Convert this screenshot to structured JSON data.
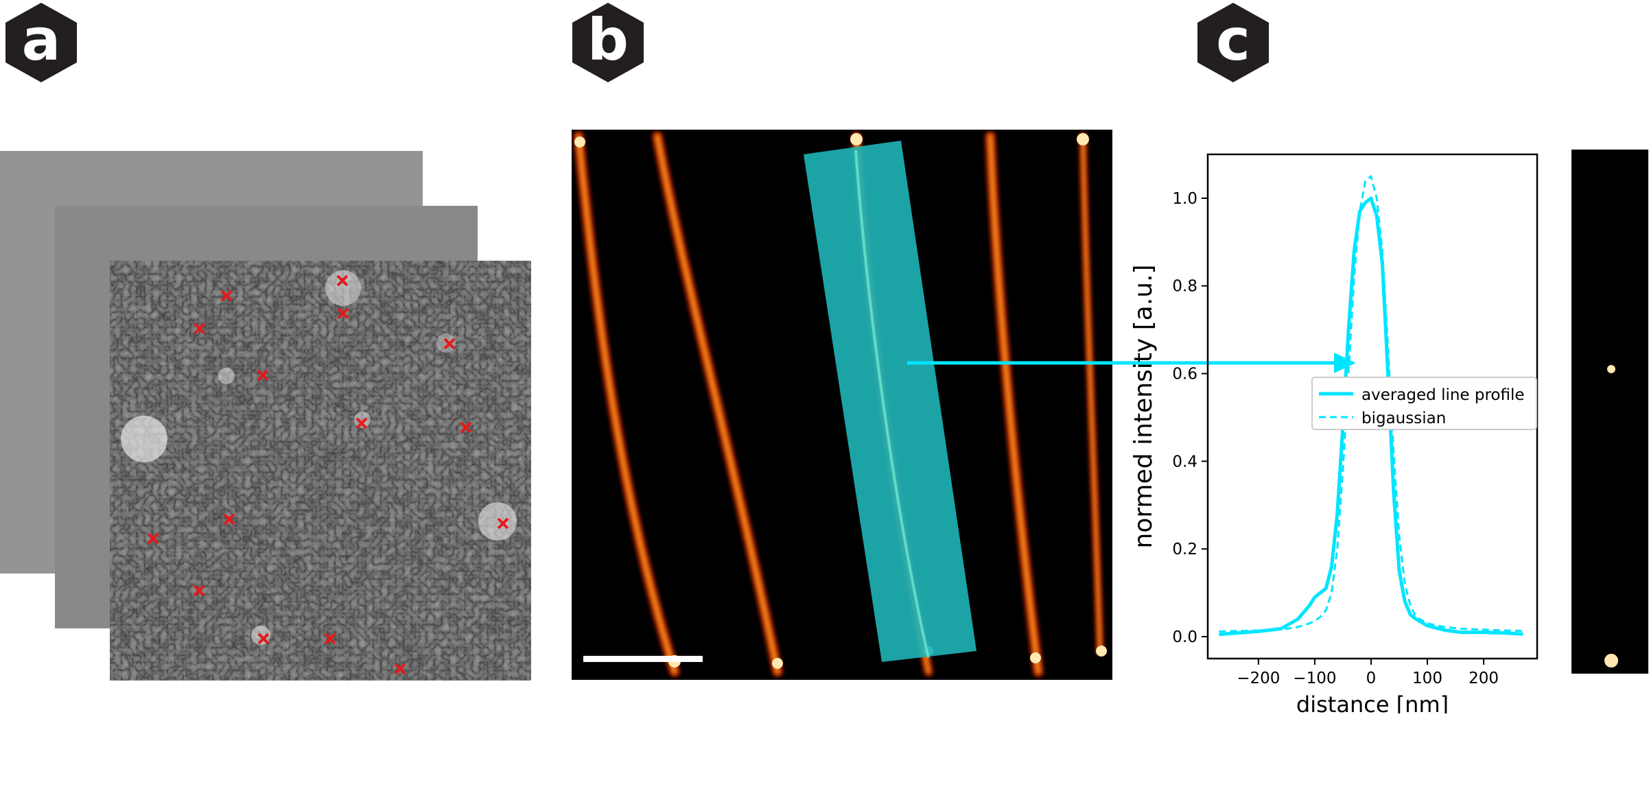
{
  "panels": {
    "a": {
      "label": "a"
    },
    "b": {
      "label": "b"
    },
    "c": {
      "label": "c"
    }
  },
  "colors": {
    "hex_fill": "#231f20",
    "cyan": "#00e5ff",
    "marker_red": "#e41a1c",
    "scalebar": "#ffffff"
  },
  "chart_data": {
    "type": "line",
    "title": "",
    "xlabel": "distance [nm]",
    "ylabel": "normed intensity [a.u.]",
    "xlim": [
      -290,
      295
    ],
    "ylim": [
      -0.05,
      1.1
    ],
    "xticks": [
      -200,
      -100,
      0,
      100,
      200
    ],
    "yticks": [
      0.0,
      0.2,
      0.4,
      0.6,
      0.8,
      1.0
    ],
    "xtick_labels": [
      "−200",
      "−100",
      "0",
      "100",
      "200"
    ],
    "ytick_labels": [
      "0.0",
      "0.2",
      "0.4",
      "0.6",
      "0.8",
      "1.0"
    ],
    "grid": false,
    "legend_position": "center-right",
    "series": [
      {
        "name": "averaged line profile",
        "style": "solid",
        "x": [
          -270,
          -240,
          -200,
          -160,
          -130,
          -110,
          -100,
          -90,
          -80,
          -70,
          -60,
          -50,
          -40,
          -30,
          -20,
          -10,
          0,
          10,
          20,
          30,
          40,
          50,
          60,
          70,
          80,
          100,
          130,
          160,
          200,
          240,
          270
        ],
        "y": [
          0.005,
          0.008,
          0.012,
          0.018,
          0.04,
          0.07,
          0.09,
          0.1,
          0.11,
          0.16,
          0.28,
          0.48,
          0.7,
          0.88,
          0.97,
          0.99,
          1.0,
          0.96,
          0.85,
          0.6,
          0.33,
          0.15,
          0.08,
          0.05,
          0.04,
          0.025,
          0.015,
          0.01,
          0.01,
          0.008,
          0.006
        ]
      },
      {
        "name": "bigaussian",
        "style": "dashed",
        "x": [
          -270,
          -240,
          -200,
          -160,
          -130,
          -110,
          -100,
          -90,
          -80,
          -70,
          -60,
          -50,
          -40,
          -30,
          -20,
          -10,
          0,
          10,
          20,
          30,
          40,
          50,
          60,
          70,
          80,
          100,
          130,
          160,
          200,
          240,
          270
        ],
        "y": [
          0.012,
          0.013,
          0.014,
          0.016,
          0.022,
          0.03,
          0.036,
          0.045,
          0.06,
          0.1,
          0.2,
          0.38,
          0.6,
          0.82,
          0.97,
          1.04,
          1.05,
          1.0,
          0.88,
          0.66,
          0.42,
          0.23,
          0.12,
          0.07,
          0.045,
          0.03,
          0.022,
          0.018,
          0.016,
          0.014,
          0.013
        ]
      }
    ]
  }
}
